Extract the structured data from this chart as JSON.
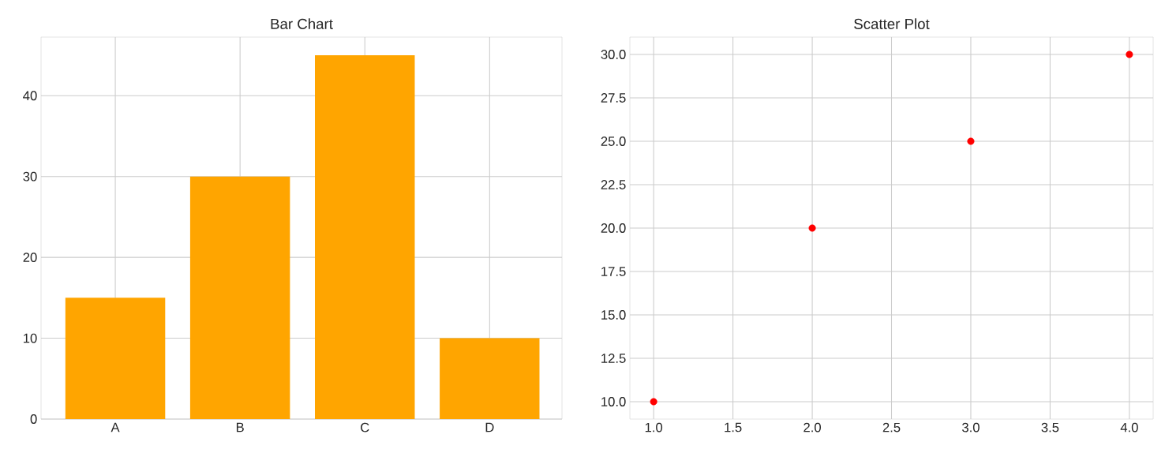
{
  "chart_data": [
    {
      "type": "bar",
      "title": "Bar Chart",
      "categories": [
        "A",
        "B",
        "C",
        "D"
      ],
      "values": [
        15,
        30,
        45,
        10
      ],
      "color": "#ffa500",
      "ylim": [
        0,
        47.25
      ],
      "yticks": [
        0,
        10,
        20,
        30,
        40
      ],
      "grid": true
    },
    {
      "type": "scatter",
      "title": "Scatter Plot",
      "x": [
        1,
        2,
        3,
        4
      ],
      "values": [
        10,
        20,
        25,
        30
      ],
      "color": "#ff0000",
      "marker": "circle",
      "xlim": [
        0.85,
        4.15
      ],
      "ylim": [
        9,
        31
      ],
      "xticks": [
        {
          "value": 1,
          "label": "1.0"
        },
        {
          "value": 1.5,
          "label": "1.5"
        },
        {
          "value": 2,
          "label": "2.0"
        },
        {
          "value": 2.5,
          "label": "2.5"
        },
        {
          "value": 3,
          "label": "3.0"
        },
        {
          "value": 3.5,
          "label": "3.5"
        },
        {
          "value": 4,
          "label": "4.0"
        }
      ],
      "yticks": [
        {
          "value": 10,
          "label": "10.0"
        },
        {
          "value": 12.5,
          "label": "12.5"
        },
        {
          "value": 15,
          "label": "15.0"
        },
        {
          "value": 17.5,
          "label": "17.5"
        },
        {
          "value": 20,
          "label": "20.0"
        },
        {
          "value": 22.5,
          "label": "22.5"
        },
        {
          "value": 25,
          "label": "25.0"
        },
        {
          "value": 27.5,
          "label": "27.5"
        },
        {
          "value": 30,
          "label": "30.0"
        }
      ],
      "grid": true
    }
  ]
}
